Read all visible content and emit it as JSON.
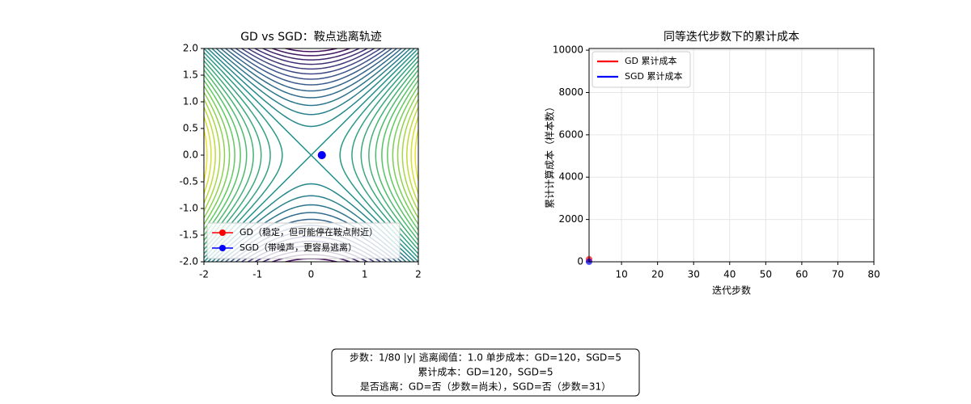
{
  "chart_data": [
    {
      "type": "scatter",
      "title": "GD vs SGD：鞍点逃离轨迹",
      "xlim": [
        -2,
        2
      ],
      "ylim": [
        -2,
        2
      ],
      "xticks": [
        -2,
        -1,
        0,
        1,
        2
      ],
      "yticks": [
        {
          "value": -2,
          "label": "-2.0"
        },
        -1.5,
        {
          "value": -1,
          "label": "-1.0"
        },
        -0.5,
        {
          "value": 0,
          "label": "0.0"
        },
        0.5,
        {
          "value": 1,
          "label": "1.0"
        },
        1.5,
        {
          "value": 2,
          "label": "2.0"
        }
      ],
      "legend": "lower left",
      "series": [
        {
          "name": "GD（稳定，但可能停在鞍点附近）",
          "color": "#ff0000",
          "x": [
            0.2
          ],
          "values": [
            0
          ]
        },
        {
          "name": "SGD（带噪声，更容易逃离）",
          "color": "#0000ff",
          "x": [
            0.2
          ],
          "values": [
            0
          ]
        }
      ]
    },
    {
      "type": "line",
      "title": "同等迭代步数下的累计成本",
      "x_label": "迭代步数",
      "y_label": "累计计算成本（样本数）",
      "xlim": [
        1,
        80
      ],
      "ylim": [
        0,
        10080
      ],
      "xticks": [
        10,
        20,
        30,
        40,
        50,
        60,
        70,
        80
      ],
      "yticks": [
        0,
        2000,
        4000,
        6000,
        8000,
        10000
      ],
      "grid": true,
      "legend": "upper left",
      "x": [
        1
      ],
      "series": [
        {
          "name": "GD 累计成本",
          "color": "#ff0000",
          "values": [
            120
          ]
        },
        {
          "name": "SGD 累计成本",
          "color": "#0000ff",
          "values": [
            5
          ]
        }
      ]
    }
  ],
  "footer": {
    "lines": [
      "步数：1/80  |y| 逃离阈值：1.0  单步成本：GD=120，SGD=5",
      "累计成本：GD=120，SGD=5",
      "是否逃离：GD=否（步数=尚未），SGD=否（步数=31）"
    ]
  }
}
